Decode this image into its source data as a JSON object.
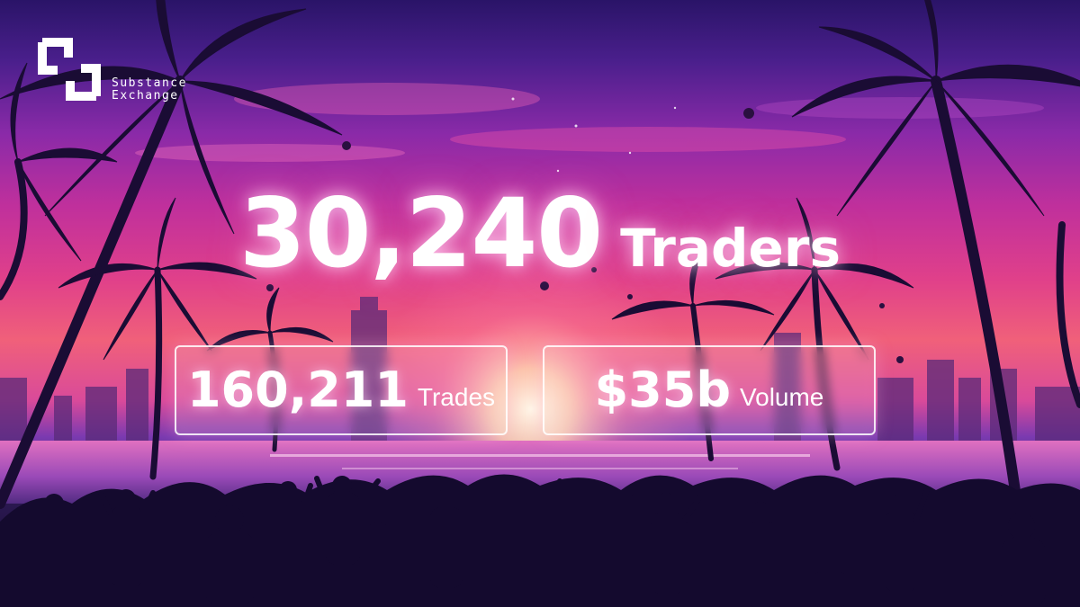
{
  "brand": {
    "logo_icon": "substance-exchange-logo",
    "name_line1": "Substance",
    "name_line2": "Exchange"
  },
  "headline": {
    "count": "30,240",
    "label": "Traders"
  },
  "stats": [
    {
      "value": "160,211",
      "label": "Trades"
    },
    {
      "value": "$35b",
      "label": "Volume"
    }
  ],
  "colors": {
    "sky_top": "#2a1468",
    "sky_mid": "#c0309c",
    "horizon": "#f0607a",
    "silhouette": "#140a2e",
    "text": "#ffffff"
  }
}
